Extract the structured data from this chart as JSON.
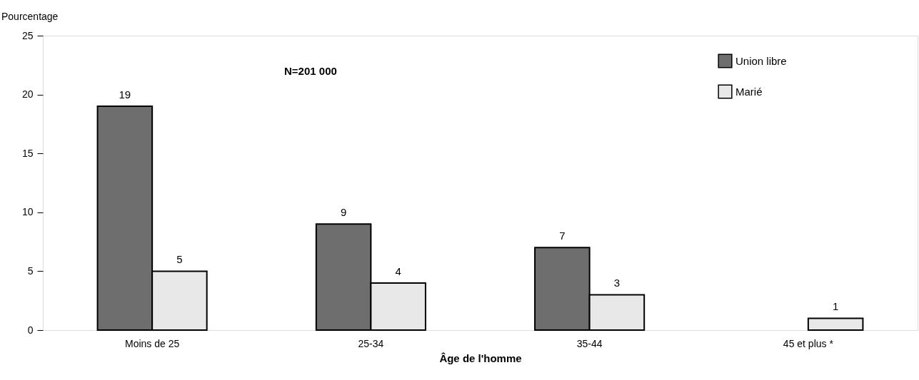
{
  "chart_data": {
    "type": "bar",
    "ylabel": "Pourcentage",
    "xlabel": "Âge de l'homme",
    "categories": [
      "Moins de 25",
      "25-34",
      "35-44",
      "45 et plus *"
    ],
    "series": [
      {
        "name": "Union libre",
        "color": "#6e6e6e",
        "values": [
          19,
          9,
          7,
          null
        ]
      },
      {
        "name": "Marié",
        "color": "#e8e8e8",
        "values": [
          5,
          4,
          3,
          1
        ]
      }
    ],
    "ylim": [
      0,
      25
    ],
    "yticks": [
      0,
      5,
      10,
      15,
      20,
      25
    ],
    "grid": false,
    "legend": "top right",
    "data_labels": true,
    "annotations": [
      "N=201 000"
    ]
  }
}
